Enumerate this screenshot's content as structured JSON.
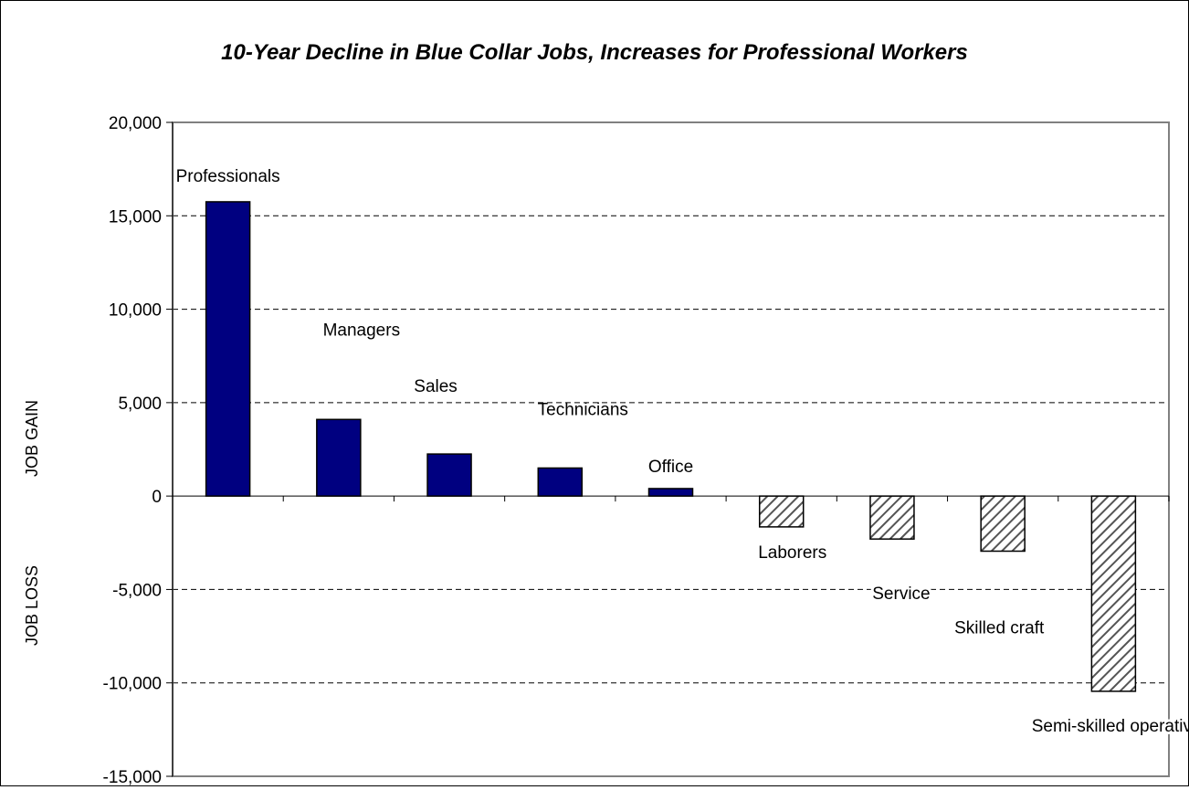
{
  "chart_data": {
    "type": "bar",
    "title": "10-Year Decline in Blue Collar Jobs, Increases for Professional Workers",
    "ylabel_top": "JOB GAIN",
    "ylabel_bottom": "JOB LOSS",
    "ylim": [
      -15000,
      20000
    ],
    "ytick_values": [
      20000,
      15000,
      10000,
      5000,
      0,
      -5000,
      -10000,
      -15000
    ],
    "ytick_labels": [
      "20,000",
      "15,000",
      "10,000",
      "5,000",
      "0",
      "-5,000",
      "-10,000",
      "-15,000"
    ],
    "grid": true,
    "categories": [
      "Professionals",
      "Managers",
      "Sales",
      "Technicians",
      "Office",
      "Laborers",
      "Service",
      "Skilled craft",
      "Semi-skilled operatives"
    ],
    "values": [
      15750,
      4100,
      2250,
      1500,
      400,
      -1650,
      -2300,
      -2950,
      -10450
    ],
    "colors": {
      "gain": "#000080",
      "loss": "#ffffff",
      "hatch": "#555555"
    }
  }
}
